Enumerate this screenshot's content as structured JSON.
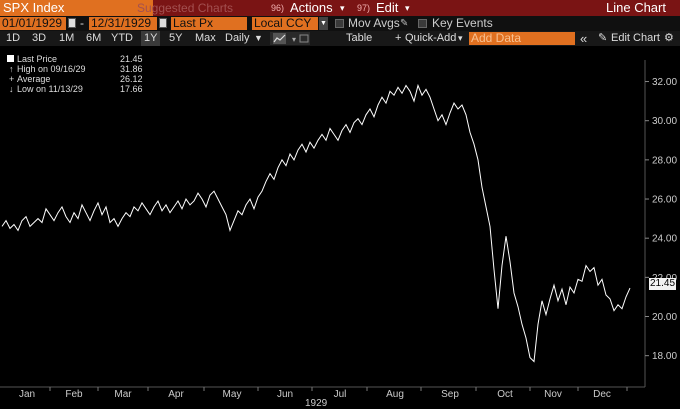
{
  "header": {
    "ticker": "SPX Index",
    "suggested": "Suggested Charts",
    "actions_num": "96)",
    "actions": "Actions",
    "edit_num": "97)",
    "edit": "Edit",
    "title": "Line Chart"
  },
  "controls": {
    "start_date": "01/01/1929",
    "end_date": "12/31/1929",
    "field": "Last Px",
    "currency": "Local CCY",
    "mov_avgs": "Mov Avgs",
    "key_events": "Key Events"
  },
  "toolbar": {
    "ranges": [
      "1D",
      "3D",
      "1M",
      "6M",
      "YTD",
      "1Y",
      "5Y",
      "Max"
    ],
    "active_range": "1Y",
    "frequency": "Daily",
    "table": "Table",
    "quick_add": "Quick-Add",
    "add_data_placeholder": "Add Data",
    "collapse": "«",
    "edit_chart": "Edit Chart",
    "settings_icon": "gear-icon"
  },
  "legend": {
    "last_label": "Last Price",
    "last_value": "21.45",
    "high_label": "High on 09/16/29",
    "high_value": "31.86",
    "avg_label": "Average",
    "avg_value": "26.12",
    "low_label": "Low on 11/13/29",
    "low_value": "17.66"
  },
  "last_price_tag": "21.45",
  "colors": {
    "header_bg": "#7a1414",
    "accent": "#e07020",
    "line": "#ffffff",
    "background": "#000000"
  },
  "chart_data": {
    "type": "line",
    "series": [
      {
        "values": [
          24.6,
          24.9,
          24.5,
          24.7,
          24.4,
          24.9,
          25.1,
          24.6,
          24.8,
          25.0,
          24.8,
          25.5,
          25.2,
          24.9,
          25.3,
          25.6,
          25.1,
          24.8,
          25.3,
          25.0,
          25.7,
          25.3,
          24.9,
          25.4,
          25.8,
          25.2,
          25.6,
          24.8,
          25.0,
          24.6,
          25.0,
          25.3,
          25.1,
          25.6,
          25.4,
          25.8,
          25.5,
          25.2,
          25.6,
          25.9,
          25.4,
          25.7,
          25.3,
          25.6,
          25.9,
          25.5,
          26.0,
          25.7,
          25.9,
          26.3,
          26.0,
          25.6,
          26.2,
          26.4,
          26.0,
          25.6,
          25.2,
          24.4,
          24.9,
          25.4,
          25.2,
          25.7,
          26.0,
          25.5,
          26.1,
          26.4,
          26.9,
          27.3,
          27.0,
          27.6,
          28.0,
          27.7,
          28.3,
          28.0,
          28.5,
          28.8,
          28.4,
          28.9,
          28.6,
          29.0,
          29.3,
          29.0,
          29.6,
          29.3,
          29.0,
          29.5,
          29.8,
          29.4,
          29.9,
          30.1,
          29.8,
          30.3,
          30.6,
          30.2,
          30.8,
          31.2,
          30.9,
          31.5,
          31.3,
          31.7,
          31.4,
          31.8,
          31.5,
          31.0,
          31.8,
          31.3,
          31.6,
          31.2,
          30.6,
          30.0,
          30.3,
          29.8,
          30.4,
          30.9,
          30.6,
          30.8,
          30.3,
          29.4,
          28.8,
          28.0,
          26.6,
          25.6,
          24.6,
          22.4,
          20.4,
          22.6,
          24.1,
          22.8,
          21.2,
          20.5,
          19.6,
          18.9,
          17.9,
          17.7,
          19.6,
          20.8,
          20.1,
          20.9,
          21.6,
          20.8,
          21.4,
          20.6,
          21.5,
          21.2,
          21.9,
          21.8,
          22.6,
          22.3,
          22.5,
          21.6,
          21.9,
          21.1,
          20.9,
          20.3,
          20.6,
          20.4,
          21.0,
          21.45
        ]
      }
    ],
    "yticks": [
      "32.00",
      "30.00",
      "28.00",
      "26.00",
      "24.00",
      "22.00",
      "20.00",
      "18.00"
    ],
    "ylim": [
      16.4,
      33.1
    ],
    "xticks": [
      "Jan",
      "Feb",
      "Mar",
      "Apr",
      "May",
      "Jun",
      "Jul",
      "Aug",
      "Sep",
      "Oct",
      "Nov",
      "Dec"
    ],
    "xlabel": "1929",
    "grid": false
  }
}
